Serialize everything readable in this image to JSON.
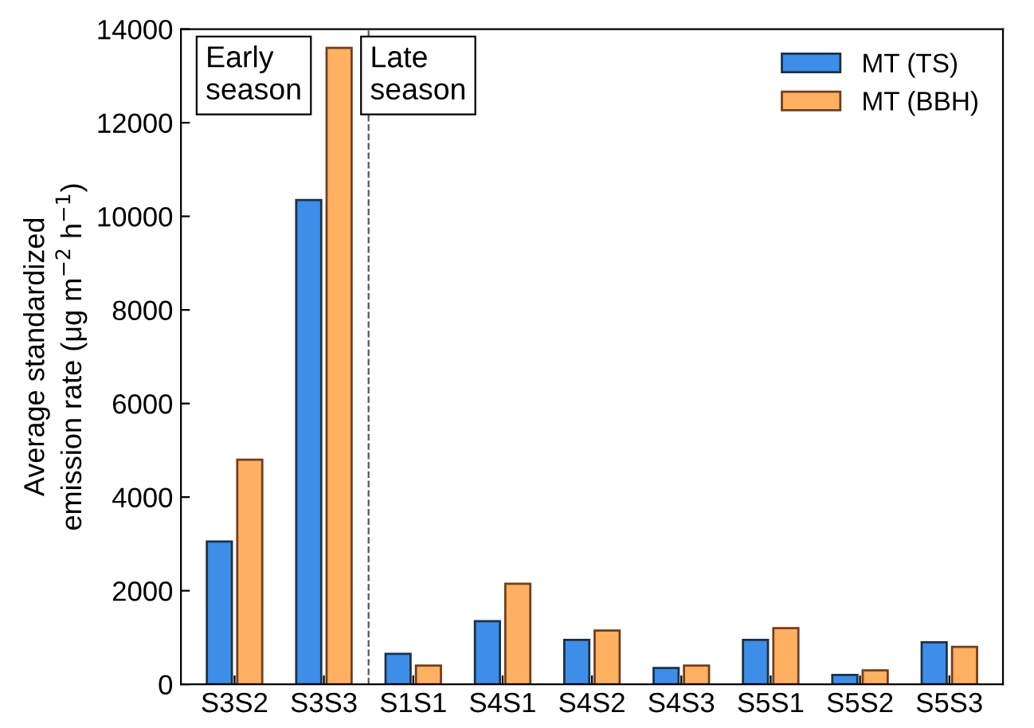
{
  "chart_data": {
    "type": "bar",
    "ylabel": "Average standardized\nemission rate (μg m$^{−2}$ h$^{−1}$)",
    "categories": [
      "S3S2",
      "S3S3",
      "S1S1",
      "S4S1",
      "S4S2",
      "S4S3",
      "S5S1",
      "S5S2",
      "S5S3"
    ],
    "series": [
      {
        "name": "MT (TS)",
        "color": "#3d8ee8",
        "values": [
          3050,
          10350,
          650,
          1350,
          950,
          350,
          950,
          200,
          900
        ]
      },
      {
        "name": "MT (BBH)",
        "color": "#ffb060",
        "values": [
          4800,
          13600,
          400,
          2150,
          1150,
          400,
          1200,
          300,
          800
        ]
      }
    ],
    "ylim": [
      0,
      14000
    ],
    "yticks": [
      0,
      2000,
      4000,
      6000,
      8000,
      10000,
      12000,
      14000
    ],
    "annotations": [
      "Early\nseason",
      "Late\nseason"
    ],
    "legend": "top right",
    "grid": false
  }
}
